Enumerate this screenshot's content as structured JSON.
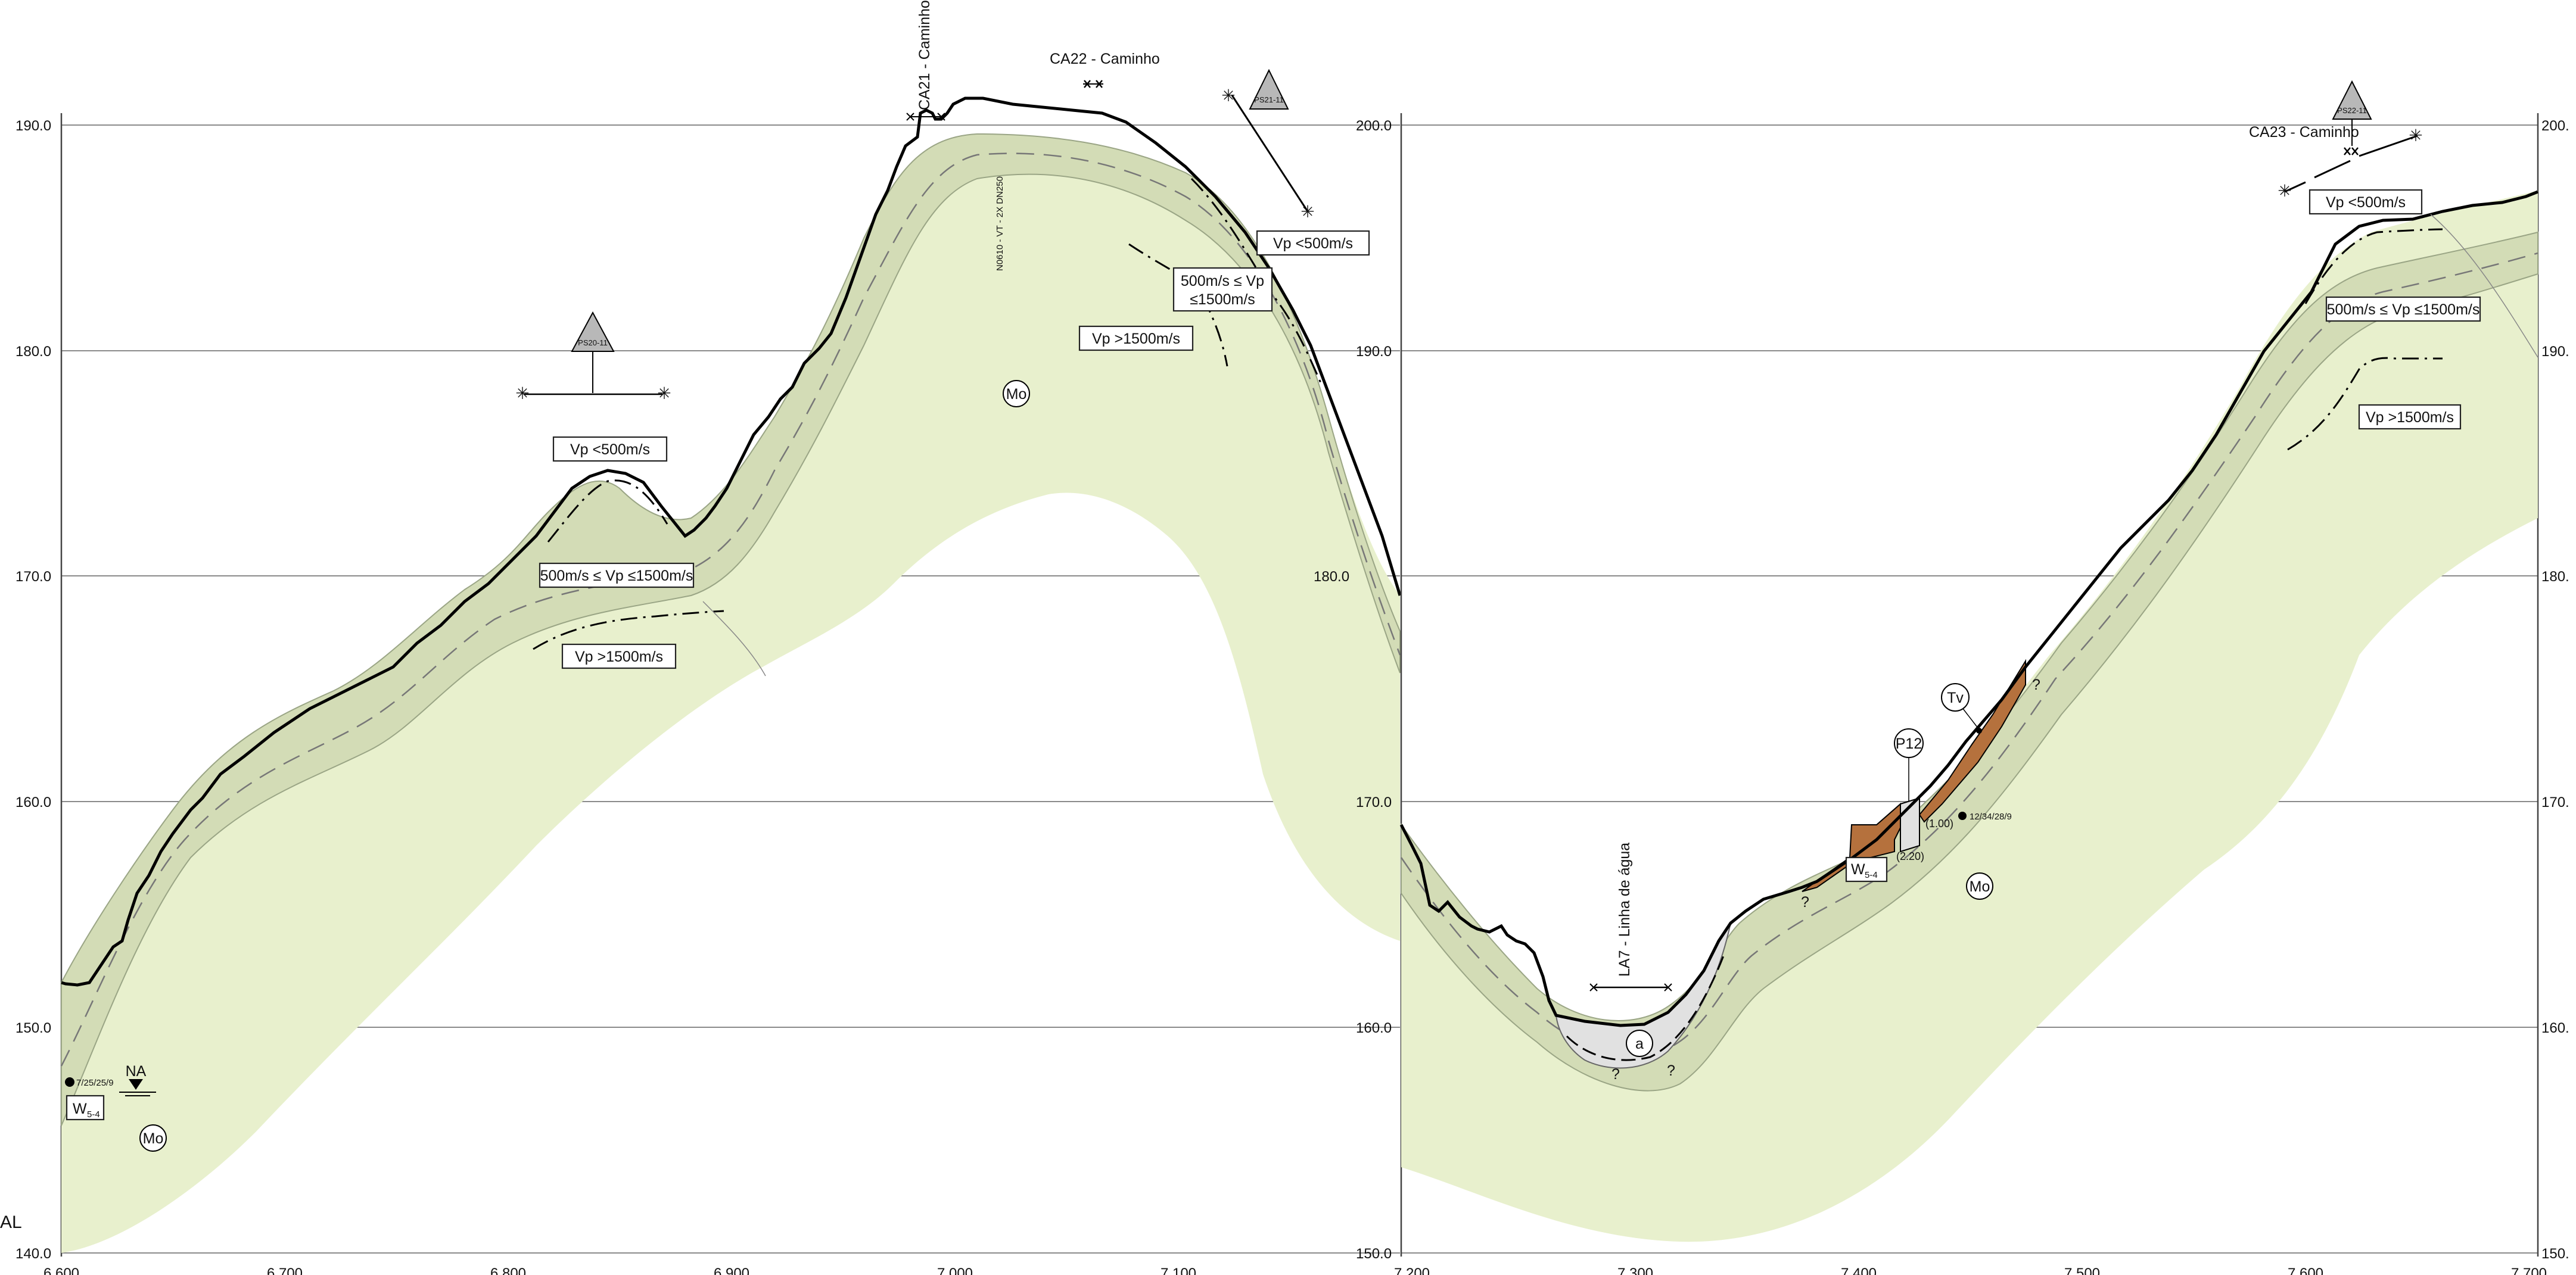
{
  "left_panel": {
    "elevation_ticks": [
      "190.0",
      "180.0",
      "170.0",
      "160.0",
      "150.0",
      "140.0"
    ],
    "chainage_ticks": [
      "6.600",
      "6.700",
      "6.800",
      "6.900",
      "7.000",
      "7.100"
    ],
    "mid_elev_marker": "180.0",
    "labels": {
      "ca21": "CA21 - Caminho",
      "ca22": "CA22 - Caminho",
      "vp_low_a": "Vp <500m/s",
      "vp_mid_a": "500m/s ≤ Vp ≤1500m/s",
      "vp_high_a": "Vp >1500m/s",
      "vp_low_b": "Vp <500m/s",
      "vp_mid_b_1": "500m/s ≤ Vp",
      "vp_mid_b_2": "≤1500m/s",
      "vp_high_b": "Vp >1500m/s",
      "mo": "Mo",
      "pipe": "N0610 - VT - 2X DN250",
      "water_level": "NA",
      "well_code": "7/25/25/9",
      "weather": "W",
      "weather_sub": "5-4",
      "edge_label": "AL",
      "tri_a": "PS20-11",
      "tri_b": "PS21-11"
    }
  },
  "right_panel": {
    "elevation_ticks_left": [
      "200.0",
      "190.0",
      "180.0",
      "170.0",
      "160.0",
      "150.0"
    ],
    "elevation_ticks_right": [
      "200.",
      "190.",
      "180.",
      "170.",
      "160.",
      "150."
    ],
    "chainage_ticks": [
      "7.200",
      "7.300",
      "7.400",
      "7.500",
      "7.600",
      "7.700"
    ],
    "labels": {
      "ca23": "CA23 - Caminho",
      "vp_low": "Vp <500m/s",
      "vp_mid": "500m/s ≤ Vp ≤1500m/s",
      "vp_high": "Vp >1500m/s",
      "la7": "LA7 - Linha de água",
      "a": "a",
      "q": "?",
      "p12": "P12",
      "tv": "Tv",
      "mo": "Mo",
      "w": "W",
      "w_sub": "5-4",
      "d1": "(1.00)",
      "d2": "(2.20)",
      "code": "12/34/28/9",
      "tri": "PS22-11"
    }
  },
  "colors": {
    "weathered_fill": "#e8f0cd",
    "band_fill": "#d3dcb6",
    "alluvium_fill": "#e1e1e1",
    "colluvium_fill": "#b5713d",
    "terrain_line": "#000000",
    "grid": "#8a8a8a"
  }
}
